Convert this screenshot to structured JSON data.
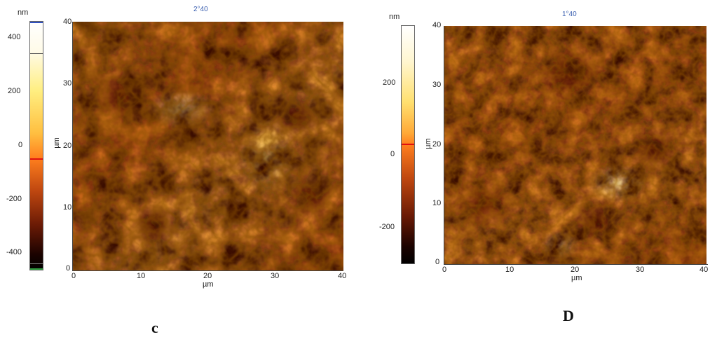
{
  "panels": [
    {
      "id": "left",
      "scan_label": "2°40",
      "colorbar_unit": "nm",
      "colorbar_ticks": [
        "400",
        "200",
        "0",
        "-200",
        "-400"
      ],
      "colorbar_colors": {
        "top": "#ffffff",
        "mid": "#ff7f1e",
        "bottom": "#000000",
        "marker": "#e01010"
      },
      "x_ticks": [
        "0",
        "10",
        "20",
        "30",
        "40"
      ],
      "y_ticks": [
        "40",
        "30",
        "20",
        "10",
        "0"
      ],
      "x_unit": "µm",
      "y_unit": "µm",
      "caption": "c"
    },
    {
      "id": "right",
      "scan_label": "1°40",
      "colorbar_unit": "nm",
      "colorbar_ticks": [
        "200",
        "0",
        "-200"
      ],
      "colorbar_colors": {
        "top": "#ffffff",
        "mid": "#ff7f1e",
        "bottom": "#000000",
        "marker": "#e01010"
      },
      "x_ticks": [
        "0",
        "10",
        "20",
        "30",
        "40"
      ],
      "y_ticks": [
        "40",
        "30",
        "20",
        "10",
        "0"
      ],
      "x_unit": "µm",
      "y_unit": "µm",
      "caption": "D"
    }
  ]
}
